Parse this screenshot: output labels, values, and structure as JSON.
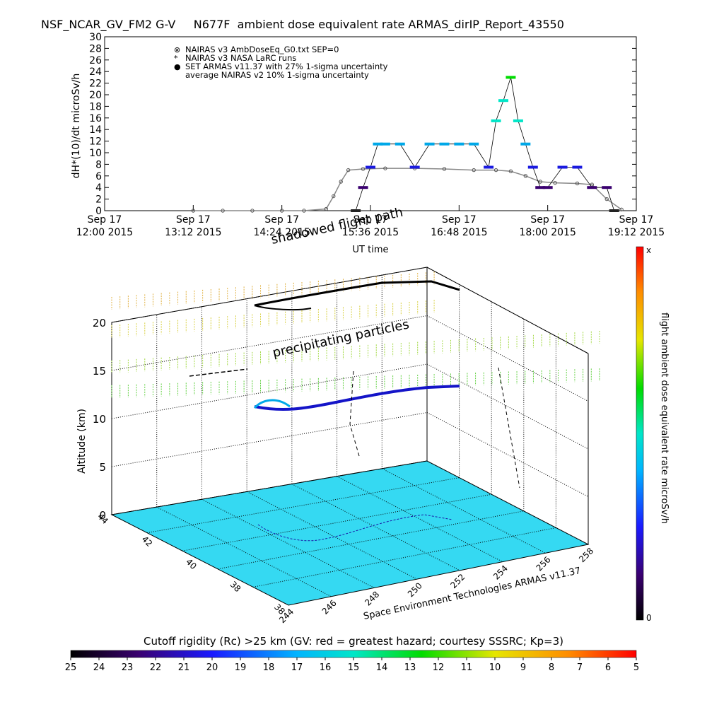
{
  "title": "NSF_NCAR_GV_FM2 G-V     N677F  ambient dose equivalent rate ARMAS_dirIP_Report_43550",
  "chart_data": [
    {
      "type": "scatter",
      "ylabel": "dH*(10)/dt microSv/h",
      "xlabel": "UT time",
      "ylim": [
        0,
        30
      ],
      "yticks": [
        "0",
        "2",
        "4",
        "6",
        "8",
        "10",
        "12",
        "14",
        "16",
        "18",
        "20",
        "22",
        "24",
        "26",
        "28",
        "30"
      ],
      "xticks": [
        {
          "l1": "Sep 17",
          "l2": "12:00 2015"
        },
        {
          "l1": "Sep 17",
          "l2": "13:12 2015"
        },
        {
          "l1": "Sep 17",
          "l2": "14:24 2015"
        },
        {
          "l1": "Sep 17",
          "l2": "15:36 2015"
        },
        {
          "l1": "Sep 17",
          "l2": "16:48 2015"
        },
        {
          "l1": "Sep 17",
          "l2": "18:00 2015"
        },
        {
          "l1": "Sep 17",
          "l2": "19:12 2015"
        }
      ],
      "legend": [
        {
          "symbol": "⊗",
          "text": "NAIRAS v3 AmbDoseEq_G0.txt SEP=0"
        },
        {
          "symbol": "*",
          "text": "NAIRAS v3 NASA LaRC runs"
        },
        {
          "symbol": "●",
          "text": "SET ARMAS v11.37 with 27% 1-sigma uncertainty",
          "color": "#1010c8"
        },
        {
          "symbol": "",
          "text": "average NAIRAS v2 10% 1-sigma uncertainty"
        }
      ],
      "legend_position": "top-left",
      "series": [
        {
          "name": "NAIRAS v3 AmbDoseEq_G0.txt SEP=0",
          "x": [
            13.2,
            13.6,
            14.0,
            14.4,
            14.7,
            15.0,
            15.1,
            15.2,
            15.3,
            15.5,
            15.8,
            16.2,
            16.6,
            17.0,
            17.3,
            17.5,
            17.7,
            17.9,
            18.1,
            18.4,
            18.6,
            18.8,
            19.0
          ],
          "y": [
            0,
            0,
            0,
            0,
            0,
            0.3,
            2.5,
            5,
            7,
            7.2,
            7.3,
            7.3,
            7.2,
            7,
            7,
            6.8,
            6,
            5,
            4.8,
            4.7,
            4.5,
            2,
            0.2
          ]
        },
        {
          "name": "SET ARMAS v11.37 with 27% 1-sigma uncertainty",
          "x": [
            15.4,
            15.5,
            15.6,
            15.7,
            15.8,
            16.0,
            16.2,
            16.4,
            16.6,
            16.8,
            17.0,
            17.2,
            17.3,
            17.4,
            17.5,
            17.6,
            17.7,
            17.8,
            17.9,
            18.0,
            18.2,
            18.4,
            18.6,
            18.8,
            18.9
          ],
          "y": [
            0,
            4,
            7.5,
            11.5,
            11.5,
            11.5,
            7.5,
            11.5,
            11.5,
            11.5,
            11.5,
            7.5,
            15.5,
            19,
            23,
            15.5,
            11.5,
            7.5,
            4,
            4,
            7.5,
            7.5,
            4,
            4,
            0
          ]
        }
      ]
    },
    {
      "type": "scatter",
      "zlabel": "Altitude (km)",
      "zticks": [
        "0",
        "5",
        "10",
        "15",
        "20"
      ],
      "lat_ticks": [
        "38",
        "38",
        "40",
        "42",
        "44"
      ],
      "lon_ticks": [
        "244",
        "246",
        "248",
        "250",
        "252",
        "254",
        "256",
        "258"
      ],
      "annotations": [
        "shadowed flight path",
        "precipitating particles"
      ],
      "credit": "Space Environment Technologies ARMAS v11.37"
    }
  ],
  "colorbar_right": {
    "label": "flight ambient dose equivalent rate microSv/h",
    "top": "x",
    "bottom": "0"
  },
  "colorbar_bottom": {
    "caption": "Cutoff rigidity (Rc) >25 km (GV: red = greatest hazard; courtesy SSSRC; Kp=3)",
    "ticks": [
      "25",
      "24",
      "23",
      "22",
      "21",
      "20",
      "19",
      "18",
      "17",
      "16",
      "15",
      "14",
      "13",
      "12",
      "11",
      "10",
      "9",
      "8",
      "7",
      "6",
      "5"
    ]
  },
  "colors": {
    "armas": "#1010c8",
    "floor": "#35d9f2"
  }
}
